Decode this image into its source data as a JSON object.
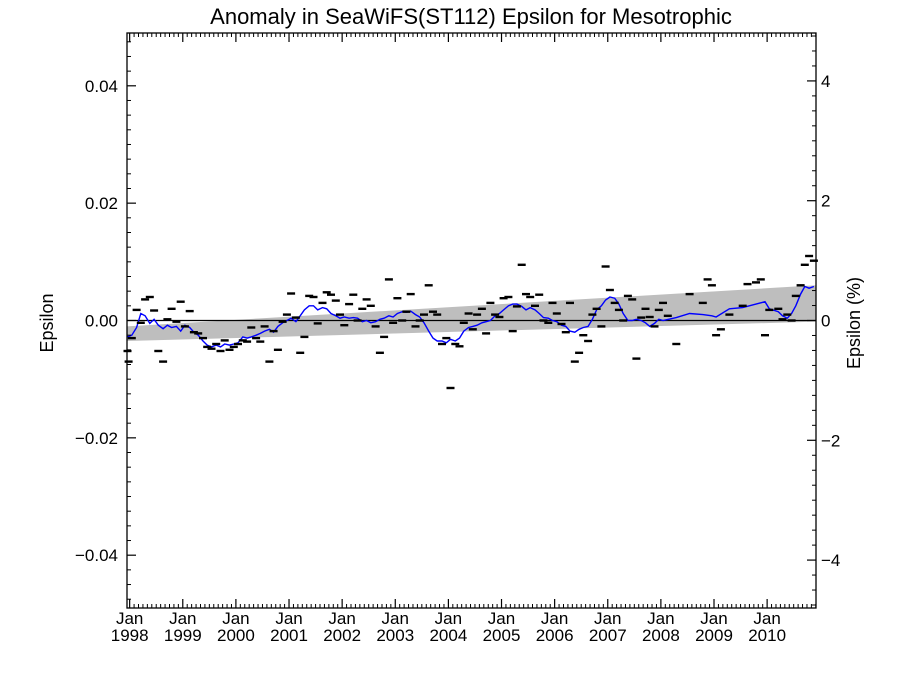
{
  "chart_data": {
    "type": "line",
    "title": "Anomaly in SeaWiFS(ST112) Epsilon for Mesotrophic",
    "ylabel": "Epsilon",
    "y2label": "Epsilon (%)",
    "ylim": [
      -0.049,
      0.049
    ],
    "y2lim": [
      -4.8,
      4.8
    ],
    "xlim": [
      1997.95,
      2010.92
    ],
    "yticks": [
      {
        "v": 0.04,
        "label": "0.04"
      },
      {
        "v": 0.02,
        "label": "0.02"
      },
      {
        "v": 0.0,
        "label": "0.00"
      },
      {
        "v": -0.02,
        "label": "−0.02"
      },
      {
        "v": -0.04,
        "label": "−0.04"
      }
    ],
    "y2ticks": [
      {
        "v": 4,
        "label": "4"
      },
      {
        "v": 2,
        "label": "2"
      },
      {
        "v": 0,
        "label": "0"
      },
      {
        "v": -2,
        "label": "−2"
      },
      {
        "v": -4,
        "label": "−4"
      }
    ],
    "xticks": [
      {
        "v": 1998.0,
        "month": "Jan",
        "year": "1998"
      },
      {
        "v": 1999.0,
        "month": "Jan",
        "year": "1999"
      },
      {
        "v": 2000.0,
        "month": "Jan",
        "year": "2000"
      },
      {
        "v": 2001.0,
        "month": "Jan",
        "year": "2001"
      },
      {
        "v": 2002.0,
        "month": "Jan",
        "year": "2002"
      },
      {
        "v": 2003.0,
        "month": "Jan",
        "year": "2003"
      },
      {
        "v": 2004.0,
        "month": "Jan",
        "year": "2004"
      },
      {
        "v": 2005.0,
        "month": "Jan",
        "year": "2005"
      },
      {
        "v": 2006.0,
        "month": "Jan",
        "year": "2006"
      },
      {
        "v": 2007.0,
        "month": "Jan",
        "year": "2007"
      },
      {
        "v": 2008.0,
        "month": "Jan",
        "year": "2008"
      },
      {
        "v": 2009.0,
        "month": "Jan",
        "year": "2009"
      },
      {
        "v": 2010.0,
        "month": "Jan",
        "year": "2010"
      }
    ],
    "zero_line": 0.0,
    "trend_band": {
      "x": [
        1997.95,
        2010.92
      ],
      "lower": [
        -0.0035,
        -0.0002
      ],
      "upper": [
        -0.001,
        0.006
      ],
      "color": "#bebebe"
    },
    "points": [
      [
        1997.96,
        -0.0052
      ],
      [
        1997.98,
        -0.007
      ],
      [
        1998.04,
        -0.003
      ],
      [
        1998.13,
        0.0018
      ],
      [
        1998.21,
        -0.0004
      ],
      [
        1998.29,
        0.0036
      ],
      [
        1998.38,
        0.004
      ],
      [
        1998.46,
        0.0017
      ],
      [
        1998.54,
        -0.0052
      ],
      [
        1998.63,
        -0.007
      ],
      [
        1998.71,
        0.0002
      ],
      [
        1998.79,
        0.002
      ],
      [
        1998.88,
        -0.0002
      ],
      [
        1998.96,
        0.0032
      ],
      [
        1999.04,
        -0.001
      ],
      [
        1999.13,
        0.0016
      ],
      [
        1999.21,
        -0.002
      ],
      [
        1999.29,
        -0.0022
      ],
      [
        1999.38,
        -0.003
      ],
      [
        1999.46,
        -0.0045
      ],
      [
        1999.54,
        -0.0048
      ],
      [
        1999.63,
        -0.004
      ],
      [
        1999.71,
        -0.0052
      ],
      [
        1999.79,
        -0.0034
      ],
      [
        1999.88,
        -0.005
      ],
      [
        1999.96,
        -0.0045
      ],
      [
        2000.04,
        -0.004
      ],
      [
        2000.13,
        -0.0034
      ],
      [
        2000.21,
        -0.0036
      ],
      [
        2000.29,
        -0.0012
      ],
      [
        2000.38,
        -0.003
      ],
      [
        2000.46,
        -0.0036
      ],
      [
        2000.54,
        -0.001
      ],
      [
        2000.63,
        -0.007
      ],
      [
        2000.71,
        -0.0018
      ],
      [
        2000.79,
        -0.005
      ],
      [
        2000.88,
        -0.0002
      ],
      [
        2000.96,
        0.001
      ],
      [
        2001.04,
        0.0046
      ],
      [
        2001.13,
        0.0005
      ],
      [
        2001.21,
        -0.0055
      ],
      [
        2001.29,
        -0.0028
      ],
      [
        2001.38,
        0.0042
      ],
      [
        2001.46,
        0.004
      ],
      [
        2001.54,
        -0.0005
      ],
      [
        2001.63,
        0.003
      ],
      [
        2001.71,
        0.0048
      ],
      [
        2001.79,
        0.0044
      ],
      [
        2001.88,
        0.0034
      ],
      [
        2001.96,
        0.001
      ],
      [
        2002.04,
        -0.0008
      ],
      [
        2002.13,
        0.0028
      ],
      [
        2002.21,
        0.0044
      ],
      [
        2002.29,
        0.0
      ],
      [
        2002.38,
        0.002
      ],
      [
        2002.46,
        0.0036
      ],
      [
        2002.54,
        0.0025
      ],
      [
        2002.63,
        -0.001
      ],
      [
        2002.71,
        -0.0055
      ],
      [
        2002.79,
        -0.0028
      ],
      [
        2002.88,
        0.007
      ],
      [
        2002.96,
        -0.0004
      ],
      [
        2003.04,
        0.0038
      ],
      [
        2003.13,
        0.0
      ],
      [
        2003.21,
        0.0015
      ],
      [
        2003.29,
        0.0045
      ],
      [
        2003.38,
        -0.001
      ],
      [
        2003.46,
        0.0
      ],
      [
        2003.54,
        0.001
      ],
      [
        2003.63,
        0.006
      ],
      [
        2003.71,
        0.0015
      ],
      [
        2003.79,
        0.001
      ],
      [
        2003.88,
        -0.004
      ],
      [
        2003.96,
        -0.003
      ],
      [
        2004.04,
        -0.0115
      ],
      [
        2004.13,
        -0.004
      ],
      [
        2004.21,
        -0.0044
      ],
      [
        2004.29,
        -0.0004
      ],
      [
        2004.38,
        0.0012
      ],
      [
        2004.46,
        -0.0015
      ],
      [
        2004.54,
        0.001
      ],
      [
        2004.63,
        0.002
      ],
      [
        2004.71,
        -0.0022
      ],
      [
        2004.79,
        0.003
      ],
      [
        2004.88,
        0.001
      ],
      [
        2004.96,
        0.0006
      ],
      [
        2005.04,
        0.0038
      ],
      [
        2005.13,
        0.004
      ],
      [
        2005.21,
        -0.0018
      ],
      [
        2005.29,
        0.0024
      ],
      [
        2005.38,
        0.0095
      ],
      [
        2005.46,
        0.0045
      ],
      [
        2005.54,
        0.004
      ],
      [
        2005.63,
        0.0025
      ],
      [
        2005.71,
        0.0044
      ],
      [
        2005.79,
        0.0
      ],
      [
        2005.88,
        -0.0004
      ],
      [
        2005.96,
        0.003
      ],
      [
        2006.04,
        0.0012
      ],
      [
        2006.13,
        -0.0006
      ],
      [
        2006.21,
        -0.002
      ],
      [
        2006.29,
        0.003
      ],
      [
        2006.38,
        -0.007
      ],
      [
        2006.46,
        -0.0055
      ],
      [
        2006.54,
        -0.0025
      ],
      [
        2006.63,
        -0.0035
      ],
      [
        2006.71,
        0.001
      ],
      [
        2006.79,
        0.002
      ],
      [
        2006.88,
        -0.001
      ],
      [
        2006.96,
        0.0092
      ],
      [
        2007.04,
        0.0052
      ],
      [
        2007.13,
        0.003
      ],
      [
        2007.21,
        0.0018
      ],
      [
        2007.29,
        0.0
      ],
      [
        2007.38,
        0.0042
      ],
      [
        2007.46,
        0.0036
      ],
      [
        2007.54,
        -0.0065
      ],
      [
        2007.63,
        0.0005
      ],
      [
        2007.71,
        0.002
      ],
      [
        2007.79,
        0.0006
      ],
      [
        2007.88,
        -0.001
      ],
      [
        2007.96,
        0.0018
      ],
      [
        2008.04,
        0.003
      ],
      [
        2008.13,
        0.0008
      ],
      [
        2008.29,
        -0.004
      ],
      [
        2008.54,
        0.0045
      ],
      [
        2008.79,
        0.003
      ],
      [
        2008.88,
        0.007
      ],
      [
        2008.96,
        0.006
      ],
      [
        2009.04,
        -0.0025
      ],
      [
        2009.13,
        -0.0015
      ],
      [
        2009.29,
        0.001
      ],
      [
        2009.54,
        0.0025
      ],
      [
        2009.63,
        0.0062
      ],
      [
        2009.79,
        0.0065
      ],
      [
        2009.88,
        0.007
      ],
      [
        2009.96,
        -0.0025
      ],
      [
        2010.04,
        0.0018
      ],
      [
        2010.21,
        0.002
      ],
      [
        2010.29,
        0.0002
      ],
      [
        2010.38,
        0.001
      ],
      [
        2010.46,
        0.0
      ],
      [
        2010.54,
        0.0042
      ],
      [
        2010.63,
        0.006
      ],
      [
        2010.71,
        0.0095
      ],
      [
        2010.79,
        0.011
      ],
      [
        2010.88,
        0.0102
      ]
    ],
    "series": [
      {
        "color": "#0000ff",
        "points": [
          [
            1997.96,
            -0.0028
          ],
          [
            1998.04,
            -0.0025
          ],
          [
            1998.13,
            -0.0012
          ],
          [
            1998.21,
            0.0012
          ],
          [
            1998.29,
            0.0008
          ],
          [
            1998.38,
            -0.0005
          ],
          [
            1998.46,
            0.0002
          ],
          [
            1998.54,
            -0.0008
          ],
          [
            1998.63,
            -0.0014
          ],
          [
            1998.71,
            -0.0008
          ],
          [
            1998.79,
            -0.0012
          ],
          [
            1998.88,
            -0.001
          ],
          [
            1998.96,
            -0.0018
          ],
          [
            1999.04,
            -0.0008
          ],
          [
            1999.13,
            -0.0012
          ],
          [
            1999.21,
            -0.002
          ],
          [
            1999.29,
            -0.0025
          ],
          [
            1999.38,
            -0.0035
          ],
          [
            1999.46,
            -0.0042
          ],
          [
            1999.54,
            -0.0045
          ],
          [
            1999.63,
            -0.0042
          ],
          [
            1999.71,
            -0.0045
          ],
          [
            1999.79,
            -0.004
          ],
          [
            1999.88,
            -0.0042
          ],
          [
            1999.96,
            -0.004
          ],
          [
            2000.04,
            -0.0038
          ],
          [
            2000.13,
            -0.0028
          ],
          [
            2000.21,
            -0.003
          ],
          [
            2000.29,
            -0.0028
          ],
          [
            2000.38,
            -0.0025
          ],
          [
            2000.46,
            -0.0022
          ],
          [
            2000.54,
            -0.0018
          ],
          [
            2000.63,
            -0.0015
          ],
          [
            2000.71,
            -0.002
          ],
          [
            2000.79,
            -0.001
          ],
          [
            2000.88,
            -0.0004
          ],
          [
            2000.96,
            0.0
          ],
          [
            2001.04,
            0.0004
          ],
          [
            2001.13,
            -0.0002
          ],
          [
            2001.21,
            0.0008
          ],
          [
            2001.29,
            0.0018
          ],
          [
            2001.38,
            0.0025
          ],
          [
            2001.46,
            0.0025
          ],
          [
            2001.54,
            0.0018
          ],
          [
            2001.63,
            0.0022
          ],
          [
            2001.71,
            0.002
          ],
          [
            2001.79,
            0.0012
          ],
          [
            2001.88,
            0.0008
          ],
          [
            2001.96,
            0.0004
          ],
          [
            2002.04,
            0.0006
          ],
          [
            2002.13,
            0.0004
          ],
          [
            2002.21,
            0.0005
          ],
          [
            2002.29,
            0.0004
          ],
          [
            2002.38,
            -0.0002
          ],
          [
            2002.46,
            0.0
          ],
          [
            2002.54,
            -0.0004
          ],
          [
            2002.63,
            -0.0002
          ],
          [
            2002.71,
            0.0002
          ],
          [
            2002.79,
            0.0004
          ],
          [
            2002.88,
            0.0008
          ],
          [
            2002.96,
            0.0006
          ],
          [
            2003.04,
            0.0012
          ],
          [
            2003.13,
            0.0015
          ],
          [
            2003.21,
            0.0014
          ],
          [
            2003.29,
            0.0016
          ],
          [
            2003.38,
            0.001
          ],
          [
            2003.46,
            0.0006
          ],
          [
            2003.54,
            -0.0004
          ],
          [
            2003.63,
            -0.0018
          ],
          [
            2003.71,
            -0.003
          ],
          [
            2003.79,
            -0.0035
          ],
          [
            2003.88,
            -0.0035
          ],
          [
            2003.96,
            -0.0038
          ],
          [
            2004.04,
            -0.0032
          ],
          [
            2004.13,
            -0.0035
          ],
          [
            2004.21,
            -0.003
          ],
          [
            2004.29,
            -0.0018
          ],
          [
            2004.38,
            -0.0012
          ],
          [
            2004.46,
            -0.001
          ],
          [
            2004.54,
            -0.0008
          ],
          [
            2004.63,
            -0.0004
          ],
          [
            2004.71,
            -0.0002
          ],
          [
            2004.79,
            0.0
          ],
          [
            2004.88,
            0.0008
          ],
          [
            2004.96,
            0.0012
          ],
          [
            2005.04,
            0.0018
          ],
          [
            2005.13,
            0.0025
          ],
          [
            2005.21,
            0.0028
          ],
          [
            2005.29,
            0.0028
          ],
          [
            2005.38,
            0.0024
          ],
          [
            2005.46,
            0.0018
          ],
          [
            2005.54,
            0.0022
          ],
          [
            2005.63,
            0.0018
          ],
          [
            2005.71,
            0.0012
          ],
          [
            2005.79,
            0.0005
          ],
          [
            2005.88,
            0.0004
          ],
          [
            2005.96,
            0.0
          ],
          [
            2006.04,
            -0.0002
          ],
          [
            2006.13,
            -0.0008
          ],
          [
            2006.21,
            -0.001
          ],
          [
            2006.29,
            -0.0018
          ],
          [
            2006.38,
            -0.002
          ],
          [
            2006.46,
            -0.0015
          ],
          [
            2006.54,
            -0.0012
          ],
          [
            2006.63,
            -0.001
          ],
          [
            2006.71,
            0.0002
          ],
          [
            2006.79,
            0.0018
          ],
          [
            2006.88,
            0.0025
          ],
          [
            2006.96,
            0.0035
          ],
          [
            2007.04,
            0.004
          ],
          [
            2007.13,
            0.0038
          ],
          [
            2007.21,
            0.0028
          ],
          [
            2007.29,
            0.0012
          ],
          [
            2007.38,
            0.0
          ],
          [
            2007.46,
            0.0
          ],
          [
            2007.54,
            0.0002
          ],
          [
            2007.63,
            0.0
          ],
          [
            2007.71,
            -0.0004
          ],
          [
            2007.79,
            -0.001
          ],
          [
            2007.88,
            -0.0005
          ],
          [
            2007.96,
            0.0002
          ],
          [
            2008.04,
            0.0
          ],
          [
            2008.29,
            0.0005
          ],
          [
            2008.54,
            0.0012
          ],
          [
            2008.79,
            0.001
          ],
          [
            2008.96,
            0.0008
          ],
          [
            2009.04,
            0.0006
          ],
          [
            2009.29,
            0.002
          ],
          [
            2009.54,
            0.0022
          ],
          [
            2009.79,
            0.0028
          ],
          [
            2009.96,
            0.0032
          ],
          [
            2010.04,
            0.002
          ],
          [
            2010.21,
            0.0015
          ],
          [
            2010.29,
            0.0008
          ],
          [
            2010.38,
            0.0004
          ],
          [
            2010.46,
            0.0012
          ],
          [
            2010.54,
            0.0025
          ],
          [
            2010.63,
            0.0045
          ],
          [
            2010.71,
            0.0058
          ],
          [
            2010.79,
            0.0055
          ],
          [
            2010.88,
            0.0058
          ]
        ]
      }
    ]
  }
}
